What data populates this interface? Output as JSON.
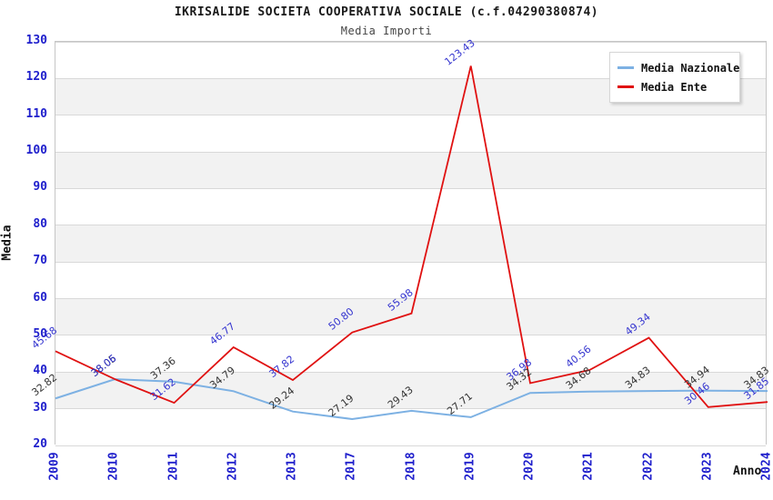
{
  "header": {
    "title": "IKRISALIDE SOCIETA COOPERATIVA SOCIALE (c.f.04290380874)",
    "subtitle": "Media Importi"
  },
  "chart_data": {
    "type": "line",
    "title": "IKRISALIDE SOCIETA COOPERATIVA SOCIALE (c.f.04290380874)",
    "subtitle": "Media Importi",
    "xlabel": "Anno",
    "ylabel": "Media",
    "categories": [
      "2009",
      "2010",
      "2011",
      "2012",
      "2013",
      "2017",
      "2018",
      "2019",
      "2020",
      "2021",
      "2022",
      "2023",
      "2024"
    ],
    "series": [
      {
        "name": "Media Nazionale",
        "color": "#7db1e3",
        "label_color": "#333333",
        "values": [
          32.82,
          38.05,
          37.36,
          34.79,
          29.24,
          27.19,
          29.43,
          27.71,
          34.32,
          34.68,
          34.83,
          34.94,
          34.83
        ]
      },
      {
        "name": "Media Ente",
        "color": "#e01111",
        "label_color": "#3434cf",
        "values": [
          45.68,
          38.06,
          31.62,
          46.77,
          37.82,
          50.8,
          55.98,
          123.43,
          36.98,
          40.56,
          49.34,
          30.46,
          31.85
        ]
      }
    ],
    "ylim": [
      20,
      130
    ],
    "ytick_step": 10,
    "yticks": [
      20,
      30,
      40,
      50,
      60,
      70,
      80,
      90,
      100,
      110,
      120,
      130
    ],
    "legend_position": "top-right",
    "grid": "horizontal-bands",
    "band_colors": [
      "#ffffff",
      "#f2f2f2"
    ],
    "gridline_color": "#d9d9d9",
    "tick_label_color": "#2020cc"
  }
}
